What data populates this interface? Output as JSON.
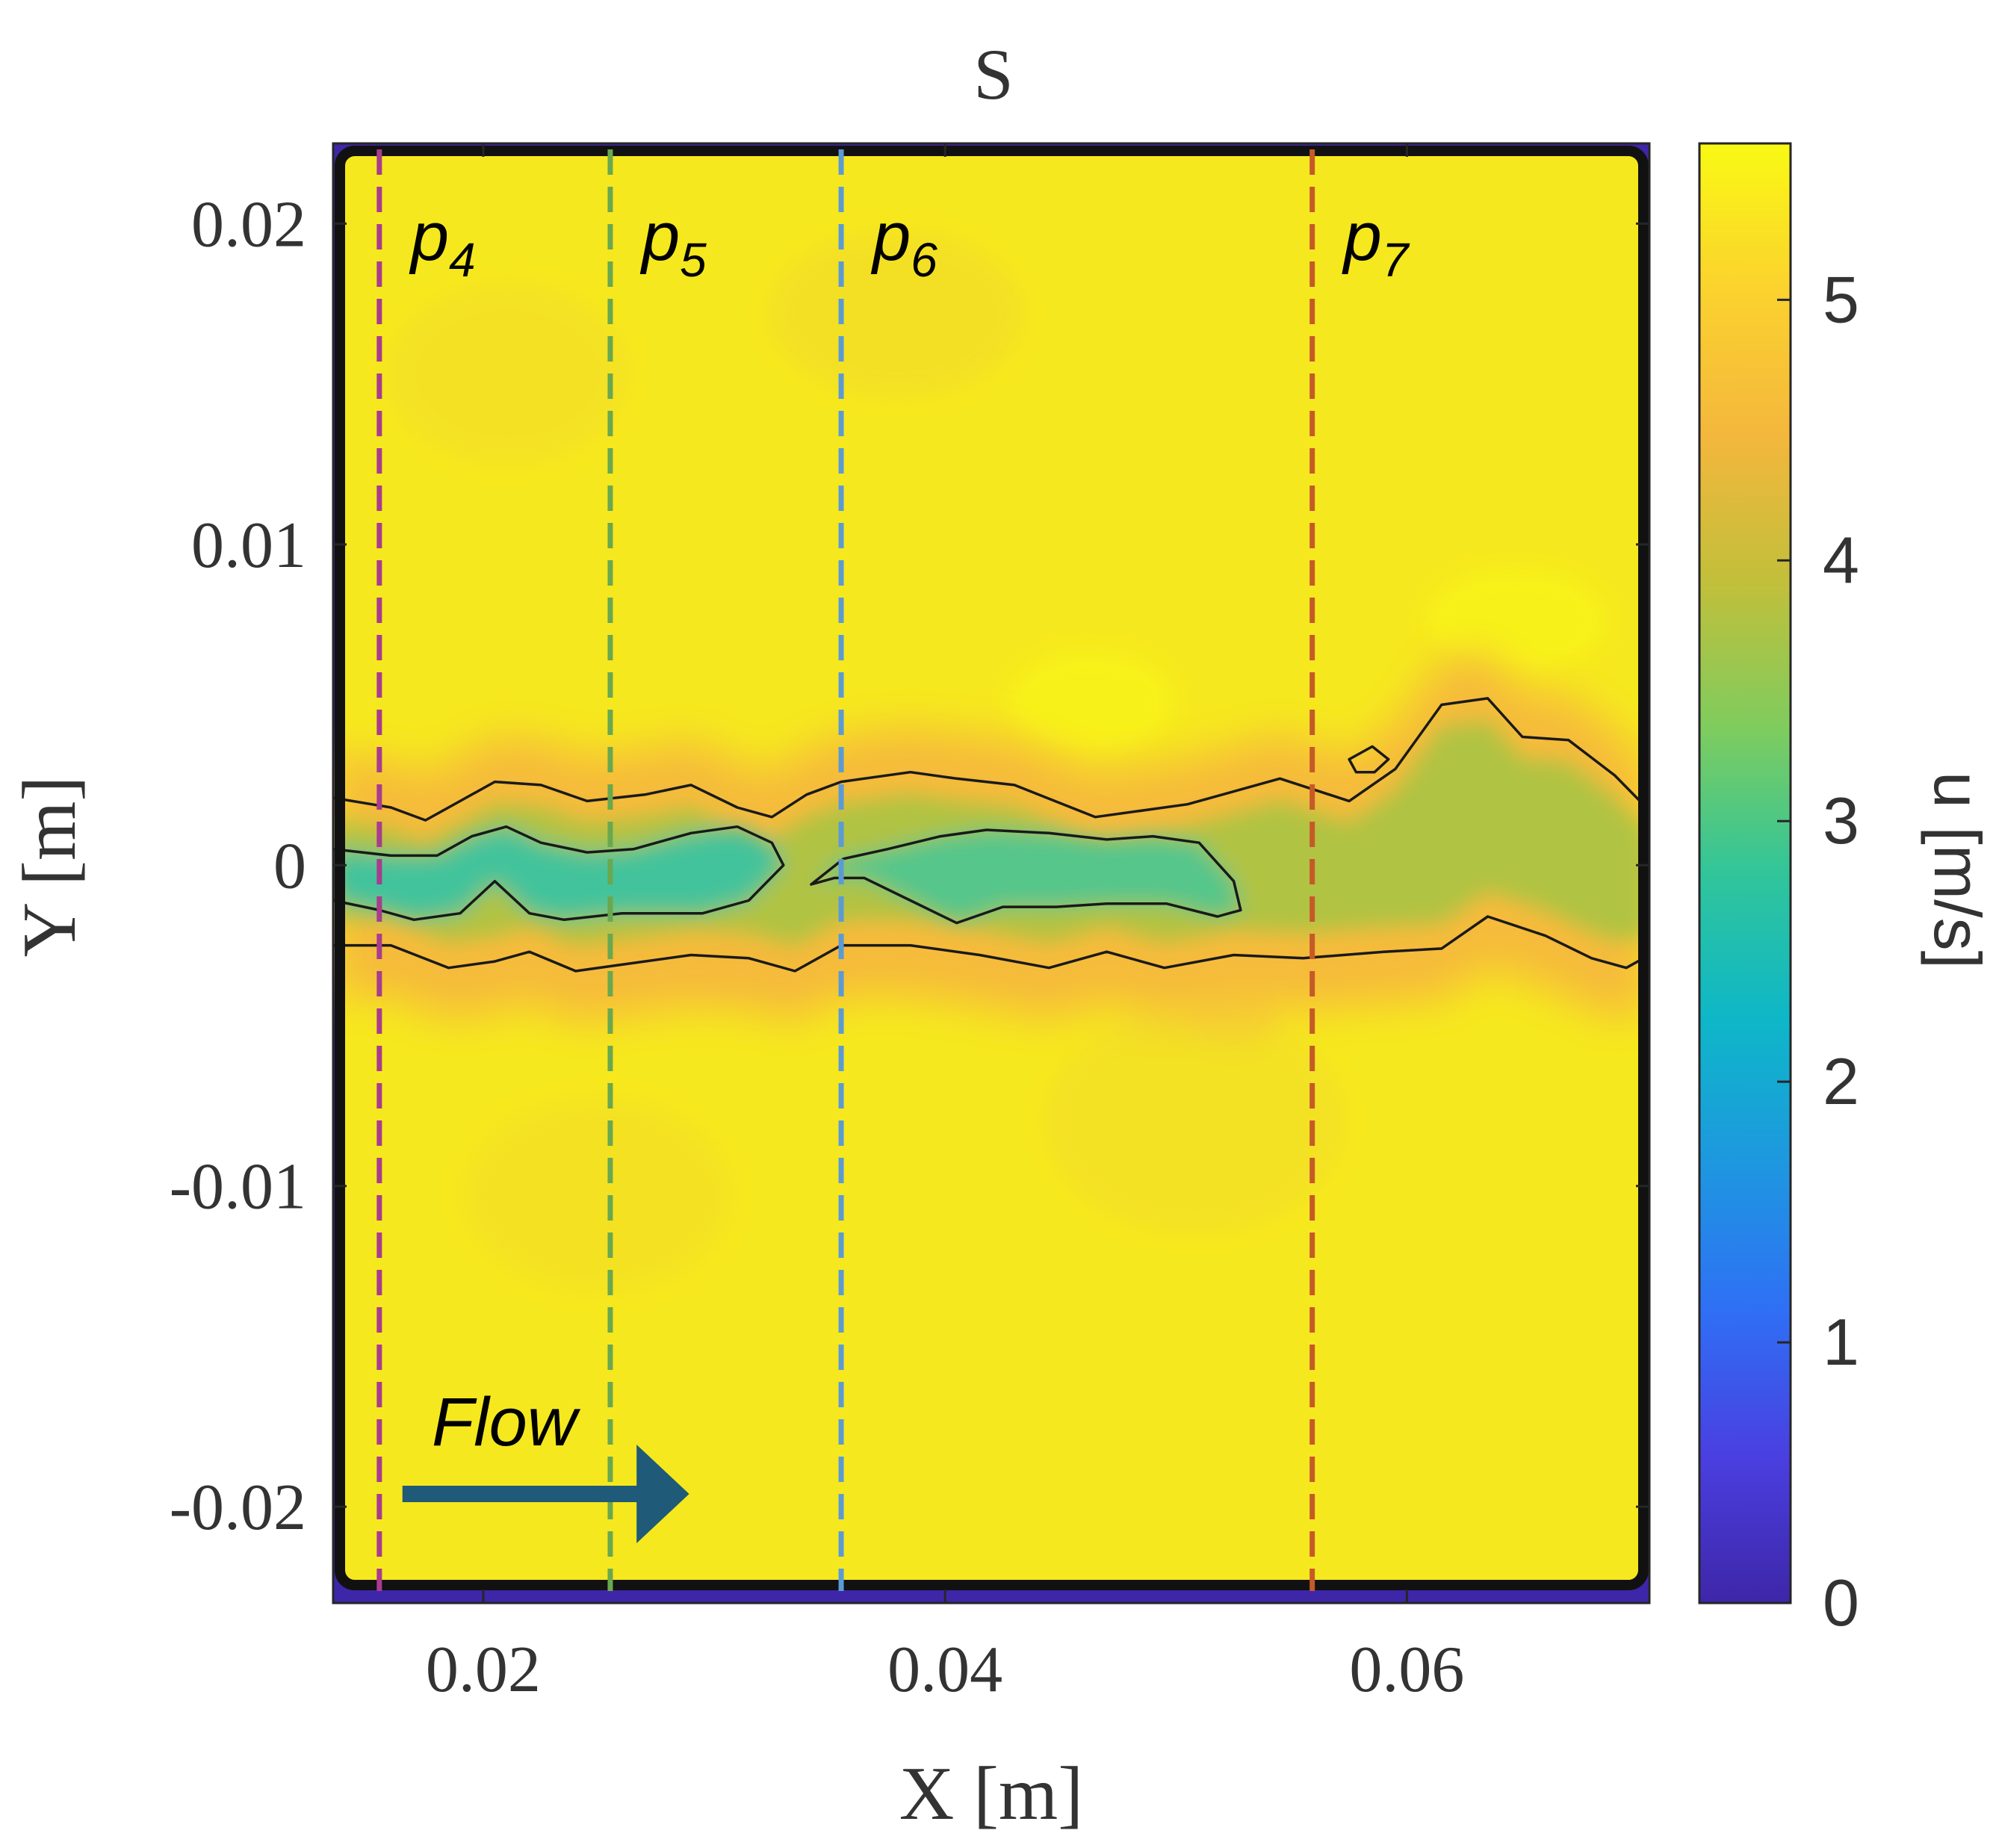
{
  "chart_data": {
    "type": "heatmap",
    "title": "S",
    "xlabel": "X [m]",
    "ylabel": "Y [m]",
    "xlim": [
      0.0135,
      0.0705
    ],
    "ylim": [
      -0.023,
      0.0225
    ],
    "xticks": [
      {
        "value": 0.02,
        "label": "0.02"
      },
      {
        "value": 0.04,
        "label": "0.04"
      },
      {
        "value": 0.06,
        "label": "0.06"
      }
    ],
    "yticks": [
      {
        "value": 0.02,
        "label": "0.02"
      },
      {
        "value": 0.01,
        "label": "0.01"
      },
      {
        "value": 0,
        "label": "0"
      },
      {
        "value": -0.01,
        "label": "-0.01"
      },
      {
        "value": -0.02,
        "label": "-0.02"
      }
    ],
    "colorbar": {
      "label": "u [m/s]",
      "range": [
        0,
        5.6
      ],
      "ticks": [
        {
          "value": 0,
          "label": "0"
        },
        {
          "value": 1,
          "label": "1"
        },
        {
          "value": 2,
          "label": "2"
        },
        {
          "value": 3,
          "label": "3"
        },
        {
          "value": 4,
          "label": "4"
        },
        {
          "value": 5,
          "label": "5"
        }
      ],
      "colormap": [
        "#3e26a8",
        "#4a3fe0",
        "#2f6ff5",
        "#1e97e0",
        "#0eb7c8",
        "#31c59a",
        "#7fcc5e",
        "#c2bf3a",
        "#f4b73d",
        "#fbd22e",
        "#f9f914"
      ]
    },
    "free_stream_velocity": 5.3,
    "wake_center_y": 0.0,
    "wake_min_velocity": 2.7,
    "probe_lines": [
      {
        "label": "p",
        "sub": "4",
        "x": 0.0155,
        "color": "#a83c8e"
      },
      {
        "label": "p",
        "sub": "5",
        "x": 0.0255,
        "color": "#6aa84f"
      },
      {
        "label": "p",
        "sub": "6",
        "x": 0.0355,
        "color": "#5b9bd5"
      },
      {
        "label": "p",
        "sub": "7",
        "x": 0.0559,
        "color": "#c55a28"
      }
    ],
    "annotation": {
      "text": "Flow",
      "arrow_from": [
        0.0165,
        -0.0196
      ],
      "arrow_to": [
        0.0295,
        -0.0196
      ],
      "arrow_color": "#1f5a78"
    },
    "contours": [
      {
        "level": 4.7,
        "name": "outer-upper",
        "points": [
          [
            0.0135,
            0.0021
          ],
          [
            0.016,
            0.0018
          ],
          [
            0.0175,
            0.0014
          ],
          [
            0.019,
            0.002
          ],
          [
            0.0205,
            0.0026
          ],
          [
            0.0225,
            0.0025
          ],
          [
            0.0245,
            0.002
          ],
          [
            0.027,
            0.0022
          ],
          [
            0.029,
            0.0025
          ],
          [
            0.031,
            0.0018
          ],
          [
            0.0325,
            0.0015
          ],
          [
            0.034,
            0.0022
          ],
          [
            0.0355,
            0.0026
          ],
          [
            0.0385,
            0.0029
          ],
          [
            0.0405,
            0.0027
          ],
          [
            0.043,
            0.0025
          ],
          [
            0.0465,
            0.0015
          ],
          [
            0.0505,
            0.0019
          ],
          [
            0.0545,
            0.0027
          ],
          [
            0.0575,
            0.002
          ],
          [
            0.0595,
            0.003
          ],
          [
            0.0615,
            0.005
          ],
          [
            0.0635,
            0.0052
          ],
          [
            0.065,
            0.004
          ],
          [
            0.067,
            0.0039
          ],
          [
            0.069,
            0.0028
          ],
          [
            0.0705,
            0.0017
          ]
        ]
      },
      {
        "level": 4.7,
        "name": "outer-lower",
        "points": [
          [
            0.0135,
            -0.0025
          ],
          [
            0.016,
            -0.0025
          ],
          [
            0.0185,
            -0.0032
          ],
          [
            0.0205,
            -0.003
          ],
          [
            0.022,
            -0.0027
          ],
          [
            0.024,
            -0.0033
          ],
          [
            0.026,
            -0.0031
          ],
          [
            0.029,
            -0.0028
          ],
          [
            0.0315,
            -0.0029
          ],
          [
            0.0335,
            -0.0033
          ],
          [
            0.0355,
            -0.0025
          ],
          [
            0.0385,
            -0.0025
          ],
          [
            0.0415,
            -0.0028
          ],
          [
            0.0445,
            -0.0032
          ],
          [
            0.047,
            -0.0027
          ],
          [
            0.0495,
            -0.0032
          ],
          [
            0.0525,
            -0.0028
          ],
          [
            0.0555,
            -0.0029
          ],
          [
            0.059,
            -0.0027
          ],
          [
            0.0615,
            -0.0026
          ],
          [
            0.0635,
            -0.0016
          ],
          [
            0.066,
            -0.0022
          ],
          [
            0.068,
            -0.0029
          ],
          [
            0.0695,
            -0.0032
          ],
          [
            0.0705,
            -0.0028
          ]
        ]
      },
      {
        "level": 3.6,
        "name": "inner-1",
        "closed": true,
        "points": [
          [
            0.0135,
            0.0005
          ],
          [
            0.016,
            0.0003
          ],
          [
            0.018,
            0.0003
          ],
          [
            0.0195,
            0.0009
          ],
          [
            0.021,
            0.0012
          ],
          [
            0.0225,
            0.0007
          ],
          [
            0.0245,
            0.0004
          ],
          [
            0.0265,
            0.0005
          ],
          [
            0.029,
            0.001
          ],
          [
            0.031,
            0.0012
          ],
          [
            0.0325,
            0.0007
          ],
          [
            0.033,
            0
          ],
          [
            0.0315,
            -0.0011
          ],
          [
            0.0295,
            -0.0015
          ],
          [
            0.026,
            -0.0015
          ],
          [
            0.0235,
            -0.0017
          ],
          [
            0.022,
            -0.0015
          ],
          [
            0.0205,
            -0.0005
          ],
          [
            0.019,
            -0.0015
          ],
          [
            0.017,
            -0.0017
          ],
          [
            0.0155,
            -0.0014
          ],
          [
            0.0135,
            -0.0011
          ]
        ]
      },
      {
        "level": 3.6,
        "name": "inner-2",
        "closed": true,
        "points": [
          [
            0.0342,
            -0.0006
          ],
          [
            0.0356,
            0.0002
          ],
          [
            0.0375,
            0.0005
          ],
          [
            0.0398,
            0.0009
          ],
          [
            0.0418,
            0.0011
          ],
          [
            0.0445,
            0.001
          ],
          [
            0.047,
            0.0008
          ],
          [
            0.049,
            0.0009
          ],
          [
            0.051,
            0.0007
          ],
          [
            0.0525,
            -0.0005
          ],
          [
            0.0528,
            -0.0014
          ],
          [
            0.0518,
            -0.0016
          ],
          [
            0.0496,
            -0.0012
          ],
          [
            0.047,
            -0.0012
          ],
          [
            0.0448,
            -0.0013
          ],
          [
            0.0425,
            -0.0013
          ],
          [
            0.0405,
            -0.0018
          ],
          [
            0.0385,
            -0.0011
          ],
          [
            0.0365,
            -0.0004
          ],
          [
            0.0352,
            -0.0004
          ]
        ]
      },
      {
        "level": 4.7,
        "name": "island",
        "closed": true,
        "points": [
          [
            0.0575,
            0.0033
          ],
          [
            0.0585,
            0.0037
          ],
          [
            0.0592,
            0.0033
          ],
          [
            0.0586,
            0.0029
          ],
          [
            0.0578,
            0.0029
          ]
        ]
      }
    ]
  }
}
